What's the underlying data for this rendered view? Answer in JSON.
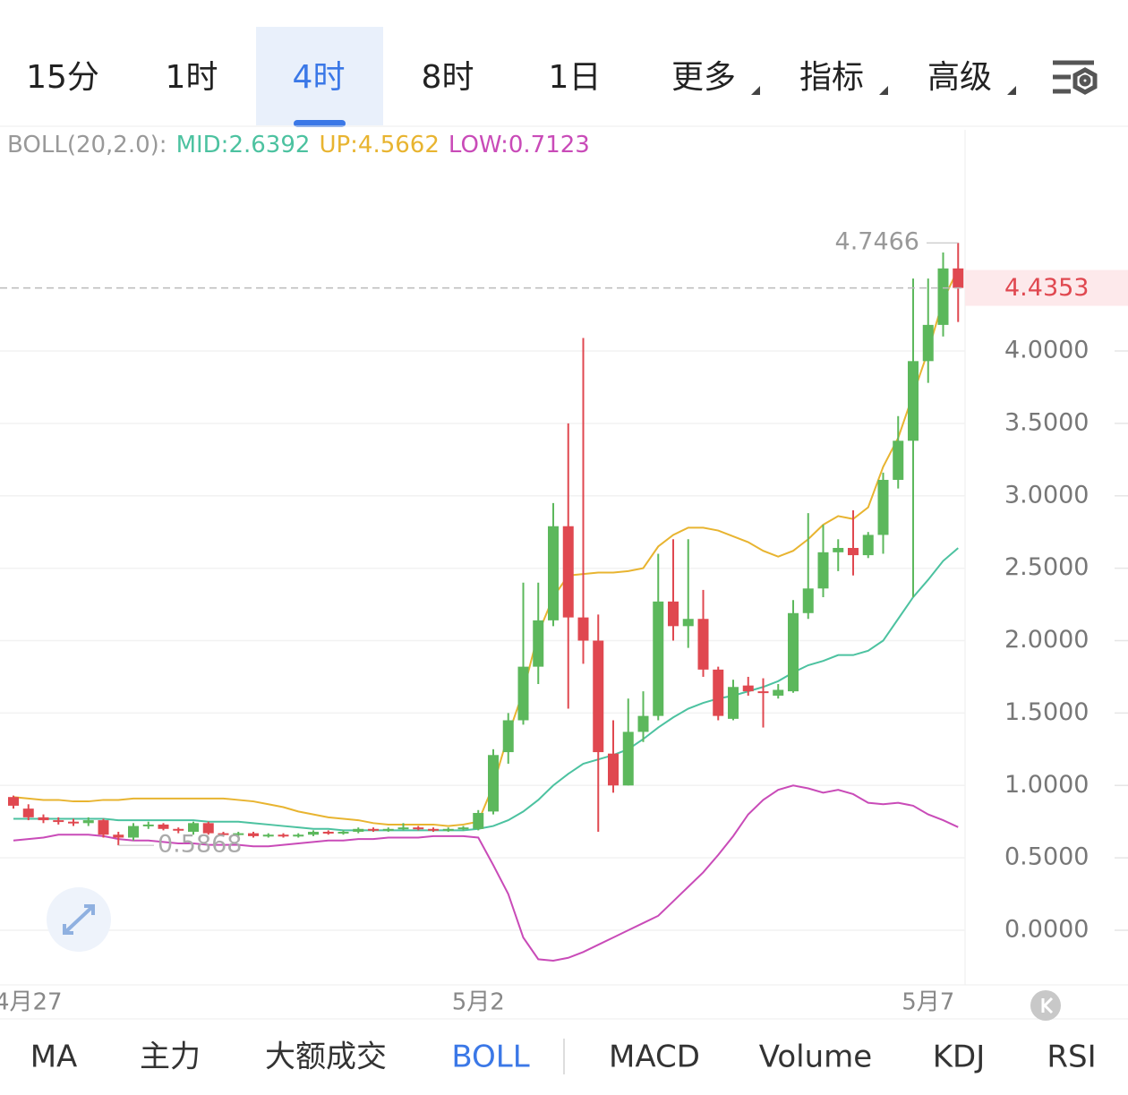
{
  "tabs": {
    "items": [
      "15分",
      "1时",
      "4时",
      "8时",
      "1日",
      "更多",
      "指标",
      "高级"
    ],
    "active": 2
  },
  "chart_data": {
    "type": "candlestick",
    "categories": [
      null,
      "4月27",
      null,
      null,
      null,
      null,
      null,
      null,
      null,
      null,
      null,
      null,
      null,
      null,
      null,
      null,
      null,
      null,
      null,
      null,
      null,
      null,
      null,
      null,
      null,
      null,
      null,
      null,
      null,
      null,
      null,
      "5月2",
      null,
      null,
      null,
      null,
      null,
      null,
      null,
      null,
      null,
      null,
      null,
      null,
      null,
      null,
      null,
      null,
      null,
      null,
      null,
      null,
      null,
      null,
      null,
      null,
      null,
      null,
      null,
      null,
      null,
      "5月7",
      null,
      null
    ],
    "open": [
      0.92,
      0.84,
      0.78,
      0.76,
      0.75,
      0.74,
      0.76,
      0.66,
      0.64,
      0.72,
      0.73,
      0.7,
      0.68,
      0.74,
      0.67,
      0.66,
      0.67,
      0.65,
      0.66,
      0.65,
      0.66,
      0.68,
      0.67,
      0.68,
      0.7,
      0.69,
      0.7,
      0.71,
      0.7,
      0.69,
      0.7,
      0.7,
      0.82,
      1.23,
      1.45,
      1.82,
      2.14,
      2.79,
      2.16,
      2.0,
      1.22,
      1.0,
      1.37,
      1.48,
      2.27,
      2.1,
      2.15,
      1.8,
      1.46,
      1.69,
      1.65,
      1.62,
      1.65,
      2.19,
      2.36,
      2.61,
      2.64,
      2.59,
      2.73,
      3.11,
      3.38,
      3.93,
      4.18,
      4.57
    ],
    "high": [
      0.93,
      0.87,
      0.8,
      0.78,
      0.77,
      0.78,
      0.77,
      0.68,
      0.74,
      0.75,
      0.74,
      0.71,
      0.75,
      0.75,
      0.68,
      0.68,
      0.68,
      0.67,
      0.67,
      0.67,
      0.69,
      0.69,
      0.69,
      0.71,
      0.71,
      0.71,
      0.74,
      0.72,
      0.71,
      0.71,
      0.72,
      0.83,
      1.25,
      1.5,
      2.4,
      2.4,
      2.95,
      3.5,
      4.09,
      2.18,
      1.45,
      1.6,
      1.65,
      2.6,
      2.7,
      2.7,
      2.35,
      1.82,
      1.73,
      1.75,
      1.74,
      1.7,
      2.28,
      2.88,
      2.8,
      2.7,
      2.9,
      2.75,
      3.16,
      3.55,
      4.5,
      4.5,
      4.68,
      4.7466
    ],
    "low": [
      0.84,
      0.76,
      0.74,
      0.73,
      0.72,
      0.72,
      0.64,
      0.5868,
      0.62,
      0.7,
      0.69,
      0.67,
      0.66,
      0.66,
      0.65,
      0.65,
      0.64,
      0.64,
      0.64,
      0.64,
      0.65,
      0.66,
      0.66,
      0.67,
      0.68,
      0.68,
      0.69,
      0.69,
      0.68,
      0.68,
      0.69,
      0.69,
      0.8,
      1.15,
      1.42,
      1.7,
      2.1,
      1.53,
      1.84,
      0.68,
      0.95,
      1.0,
      1.3,
      1.45,
      2.0,
      1.95,
      1.75,
      1.45,
      1.45,
      1.62,
      1.4,
      1.6,
      1.64,
      2.15,
      2.3,
      2.48,
      2.45,
      2.57,
      2.6,
      3.05,
      2.3,
      3.78,
      4.1,
      4.2
    ],
    "close": [
      0.86,
      0.78,
      0.76,
      0.75,
      0.74,
      0.76,
      0.66,
      0.64,
      0.72,
      0.73,
      0.7,
      0.69,
      0.74,
      0.67,
      0.66,
      0.67,
      0.65,
      0.66,
      0.65,
      0.66,
      0.68,
      0.67,
      0.68,
      0.7,
      0.69,
      0.7,
      0.71,
      0.7,
      0.69,
      0.7,
      0.71,
      0.81,
      1.21,
      1.45,
      1.82,
      2.14,
      2.79,
      2.16,
      2.0,
      1.23,
      1.0,
      1.37,
      1.48,
      2.27,
      2.1,
      2.15,
      1.8,
      1.48,
      1.68,
      1.65,
      1.64,
      1.66,
      2.19,
      2.36,
      2.61,
      2.64,
      2.59,
      2.73,
      3.11,
      3.38,
      3.93,
      4.18,
      4.57,
      4.4353
    ],
    "up_color": "#5cb85c",
    "down_color": "#e04850",
    "ylim": [
      -0.377,
      5.527
    ],
    "yticks": [
      {
        "value": 0,
        "label": "0.0000"
      },
      {
        "value": 0.5,
        "label": "0.5000"
      },
      {
        "value": 1,
        "label": "1.0000"
      },
      {
        "value": 1.5,
        "label": "1.5000"
      },
      {
        "value": 2,
        "label": "2.0000"
      },
      {
        "value": 2.5,
        "label": "2.5000"
      },
      {
        "value": 3,
        "label": "3.0000"
      },
      {
        "value": 3.5,
        "label": "3.5000"
      },
      {
        "value": 4,
        "label": "4.0000"
      }
    ],
    "grid": true,
    "indicator": {
      "label": "BOLL(20,2.0):",
      "lines": [
        {
          "name": "MID:",
          "color": "#4cc2a0",
          "values": [
            0.77,
            0.77,
            0.77,
            0.77,
            0.77,
            0.77,
            0.77,
            0.76,
            0.76,
            0.76,
            0.76,
            0.76,
            0.76,
            0.75,
            0.75,
            0.75,
            0.74,
            0.73,
            0.72,
            0.71,
            0.7,
            0.7,
            0.69,
            0.69,
            0.69,
            0.69,
            0.69,
            0.69,
            0.69,
            0.69,
            0.69,
            0.7,
            0.72,
            0.76,
            0.82,
            0.9,
            1.0,
            1.08,
            1.15,
            1.18,
            1.21,
            1.25,
            1.32,
            1.4,
            1.47,
            1.53,
            1.57,
            1.6,
            1.62,
            1.65,
            1.68,
            1.72,
            1.78,
            1.83,
            1.86,
            1.9,
            1.9,
            1.93,
            2.0,
            2.15,
            2.3,
            2.42,
            2.55,
            2.6392
          ]
        },
        {
          "name": "UP:",
          "color": "#e8b430",
          "values": [
            0.92,
            0.91,
            0.9,
            0.9,
            0.89,
            0.89,
            0.9,
            0.9,
            0.91,
            0.91,
            0.91,
            0.91,
            0.91,
            0.91,
            0.91,
            0.9,
            0.89,
            0.87,
            0.85,
            0.82,
            0.8,
            0.78,
            0.77,
            0.76,
            0.74,
            0.73,
            0.73,
            0.73,
            0.73,
            0.72,
            0.73,
            0.75,
            1.0,
            1.35,
            1.65,
            2.05,
            2.3,
            2.45,
            2.46,
            2.47,
            2.47,
            2.48,
            2.5,
            2.65,
            2.73,
            2.78,
            2.78,
            2.76,
            2.72,
            2.68,
            2.62,
            2.58,
            2.62,
            2.7,
            2.8,
            2.86,
            2.84,
            2.92,
            3.2,
            3.4,
            3.7,
            4.0,
            4.35,
            4.5662
          ]
        },
        {
          "name": "LOW:",
          "color": "#c94bb8",
          "values": [
            0.62,
            0.63,
            0.64,
            0.66,
            0.66,
            0.66,
            0.65,
            0.63,
            0.62,
            0.62,
            0.61,
            0.6,
            0.6,
            0.59,
            0.59,
            0.59,
            0.58,
            0.58,
            0.59,
            0.6,
            0.61,
            0.62,
            0.62,
            0.63,
            0.63,
            0.64,
            0.64,
            0.64,
            0.65,
            0.65,
            0.65,
            0.64,
            0.45,
            0.25,
            -0.05,
            -0.2,
            -0.21,
            -0.19,
            -0.15,
            -0.1,
            -0.05,
            0.0,
            0.05,
            0.1,
            0.2,
            0.3,
            0.4,
            0.52,
            0.65,
            0.8,
            0.9,
            0.97,
            1.0,
            0.98,
            0.95,
            0.97,
            0.94,
            0.88,
            0.87,
            0.88,
            0.86,
            0.8,
            0.76,
            0.7123
          ]
        }
      ]
    }
  },
  "bottom_tabs": {
    "items": [
      "MA",
      "主力",
      "大额成交",
      "BOLL",
      "MACD",
      "Volume",
      "KDJ",
      "RSI"
    ],
    "active": 3
  }
}
